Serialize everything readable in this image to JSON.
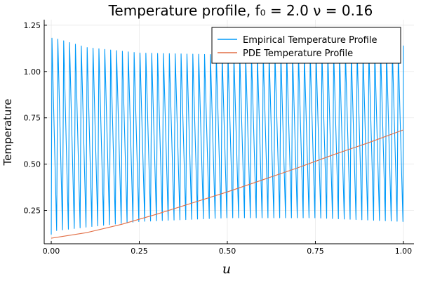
{
  "chart_data": {
    "type": "line",
    "title": "Temperature profile, f₀ = 2.0 ν = 0.16",
    "xlabel": "u",
    "ylabel": "Temperature",
    "xlim": [
      -0.02,
      1.03
    ],
    "ylim": [
      0.07,
      1.28
    ],
    "xticks": [
      0.0,
      0.25,
      0.5,
      0.75,
      1.0
    ],
    "xtick_labels": [
      "0.00",
      "0.25",
      "0.50",
      "0.75",
      "1.00"
    ],
    "yticks": [
      0.25,
      0.5,
      0.75,
      1.0,
      1.25
    ],
    "ytick_labels": [
      "0.25",
      "0.50",
      "0.75",
      "1.00",
      "1.25"
    ],
    "grid": true,
    "legend_position": "top-right",
    "series": [
      {
        "name": "Empirical Temperature Profile",
        "color": "#009af9",
        "kind": "oscillating",
        "num_cycles": 60,
        "x_start": 0.0,
        "x_end": 1.0,
        "start_value": 0.12,
        "end_value": 1.14,
        "peak_max_points": [
          [
            0.01,
            1.18
          ],
          [
            0.1,
            1.13
          ],
          [
            0.25,
            1.1
          ],
          [
            0.5,
            1.09
          ],
          [
            0.75,
            1.1
          ],
          [
            1.0,
            1.12
          ]
        ],
        "peak_min_points": [
          [
            0.0,
            0.12
          ],
          [
            0.01,
            0.14
          ],
          [
            0.1,
            0.16
          ],
          [
            0.25,
            0.19
          ],
          [
            0.5,
            0.21
          ],
          [
            0.75,
            0.21
          ],
          [
            1.0,
            0.19
          ]
        ]
      },
      {
        "name": "PDE Temperature Profile",
        "color": "#e26f46",
        "x": [
          0.0,
          0.1,
          0.2,
          0.3,
          0.4,
          0.5,
          0.6,
          0.7,
          0.8,
          0.9,
          1.0
        ],
        "values": [
          0.1,
          0.13,
          0.175,
          0.23,
          0.29,
          0.35,
          0.415,
          0.48,
          0.55,
          0.615,
          0.685
        ]
      }
    ]
  }
}
